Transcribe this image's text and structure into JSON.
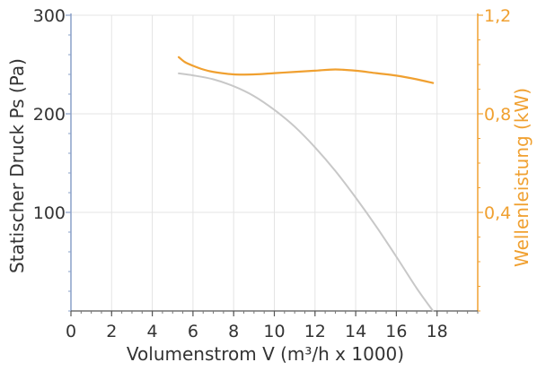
{
  "chart_data": {
    "type": "line",
    "xlabel": "Volumenstrom V (m³/h x 1000)",
    "ylabel_left": "Statischer Druck Ps (Pa)",
    "ylabel_right": "Wellenleistung (kW)",
    "xlim": [
      0,
      20
    ],
    "ylim_left": [
      0,
      300
    ],
    "ylim_right": [
      0,
      1.2
    ],
    "x_ticks": [
      "0",
      "2",
      "4",
      "6",
      "8",
      "10",
      "12",
      "14",
      "16",
      "18"
    ],
    "y_left_ticks": [
      "100",
      "200",
      "300"
    ],
    "y_right_ticks": [
      "0,4",
      "0,8",
      "1,2"
    ],
    "grid": true,
    "colors": {
      "pressure": "#c8c8c8",
      "power": "#f0a030",
      "axis_left": "#8aa0c8",
      "axis_right": "#f0a030",
      "grid": "#e4e4e4"
    },
    "series": [
      {
        "axis": "left",
        "x": [
          5.3,
          6,
          7,
          8,
          9,
          10,
          11,
          12,
          13,
          14,
          15,
          16,
          17,
          17.8
        ],
        "values": [
          241,
          239,
          235,
          228,
          218,
          204,
          187,
          166,
          142,
          115,
          86,
          55,
          23,
          0
        ]
      },
      {
        "axis": "right",
        "x": [
          5.3,
          5.6,
          6,
          6.5,
          7,
          8,
          9,
          10,
          11,
          12,
          13,
          14,
          15,
          16,
          17,
          17.8
        ],
        "values": [
          1.03,
          1.01,
          0.995,
          0.98,
          0.97,
          0.96,
          0.96,
          0.965,
          0.97,
          0.975,
          0.98,
          0.975,
          0.965,
          0.955,
          0.94,
          0.925
        ]
      }
    ]
  }
}
